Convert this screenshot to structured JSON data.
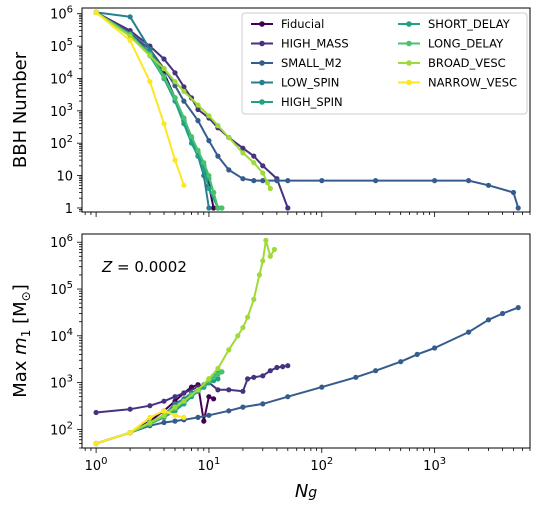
{
  "chart_data": [
    {
      "type": "line",
      "panel": "top",
      "xscale": "log",
      "yscale": "log",
      "xlim": [
        0.75,
        7000
      ],
      "ylim": [
        0.75,
        1500000
      ],
      "ylabel": "BBH Number",
      "yticks": [
        {
          "v": 1,
          "label": "1"
        },
        {
          "v": 10,
          "label": "10"
        },
        {
          "v": 100,
          "label": "10^2"
        },
        {
          "v": 1000,
          "label": "10^3"
        },
        {
          "v": 10000,
          "label": "10^4"
        },
        {
          "v": 100000,
          "label": "10^5"
        },
        {
          "v": 1000000,
          "label": "10^6"
        }
      ],
      "legend": {
        "position": "top-right",
        "columns": 2
      },
      "series": [
        {
          "name": "Fiducial",
          "color": "#440154",
          "x": [
            1,
            2,
            3,
            4,
            5,
            6,
            7,
            8,
            9,
            10,
            11
          ],
          "y": [
            1100000,
            250000,
            60000,
            15000,
            2500,
            500,
            150,
            50,
            20,
            5,
            1
          ]
        },
        {
          "name": "HIGH_MASS",
          "color": "#46327e",
          "x": [
            1,
            2,
            3,
            4,
            5,
            6,
            7,
            8,
            10,
            12,
            15,
            20,
            25,
            30,
            40,
            50
          ],
          "y": [
            1100000,
            300000,
            100000,
            40000,
            15000,
            5500,
            2500,
            1100,
            600,
            300,
            150,
            70,
            40,
            20,
            8,
            1
          ]
        },
        {
          "name": "SMALL_M2",
          "color": "#365c8d",
          "x": [
            1,
            2,
            3,
            4,
            5,
            6,
            8,
            10,
            12,
            15,
            20,
            25,
            30,
            40,
            50,
            100,
            300,
            1000,
            2000,
            3000,
            5000,
            5500
          ],
          "y": [
            1100000,
            250000,
            80000,
            20000,
            6000,
            2000,
            500,
            120,
            40,
            15,
            8,
            7,
            7,
            7,
            7,
            7,
            7,
            7,
            7,
            5,
            3,
            1
          ]
        },
        {
          "name": "LOW_SPIN",
          "color": "#277f8e",
          "x": [
            1,
            2,
            3,
            4,
            5,
            6,
            7,
            8,
            9,
            10
          ],
          "y": [
            1100000,
            800000,
            80000,
            12000,
            2500,
            500,
            150,
            40,
            10,
            1
          ]
        },
        {
          "name": "HIGH_SPIN",
          "color": "#1fa187",
          "x": [
            1,
            2,
            3,
            4,
            5,
            6,
            7,
            8,
            9,
            10,
            12
          ],
          "y": [
            1100000,
            220000,
            50000,
            10000,
            2000,
            400,
            100,
            40,
            15,
            4,
            1
          ]
        },
        {
          "name": "SHORT_DELAY",
          "color": "#1fa187",
          "x": [
            1,
            2,
            3,
            4,
            5,
            6,
            7,
            8,
            9,
            10,
            11,
            12,
            13
          ],
          "y": [
            1100000,
            220000,
            60000,
            12000,
            2500,
            600,
            150,
            50,
            20,
            8,
            3,
            1,
            1
          ]
        },
        {
          "name": "LONG_DELAY",
          "color": "#4ac16d",
          "x": [
            1,
            2,
            3,
            4,
            5,
            6,
            7,
            8,
            9,
            10,
            11,
            12,
            13
          ],
          "y": [
            1100000,
            230000,
            55000,
            11000,
            2500,
            600,
            160,
            60,
            25,
            10,
            3,
            1,
            1
          ]
        },
        {
          "name": "BROAD_VESC",
          "color": "#a0da39",
          "x": [
            1,
            2,
            3,
            4,
            5,
            6,
            8,
            10,
            12,
            15,
            20,
            25,
            30,
            33,
            35
          ],
          "y": [
            1100000,
            200000,
            50000,
            20000,
            8000,
            4000,
            1500,
            700,
            350,
            150,
            50,
            25,
            12,
            6,
            4
          ]
        },
        {
          "name": "NARROW_VESC",
          "color": "#fde725",
          "x": [
            1,
            2,
            3,
            4,
            5,
            6
          ],
          "y": [
            1100000,
            150000,
            8000,
            400,
            30,
            5
          ]
        }
      ]
    },
    {
      "type": "line",
      "panel": "bottom",
      "xscale": "log",
      "yscale": "log",
      "xlim": [
        0.75,
        7000
      ],
      "ylim": [
        40,
        1500000
      ],
      "xlabel": "Ng",
      "ylabel": "Max m1 [M_sun]",
      "annotation": "Z = 0.0002",
      "xticks": [
        {
          "v": 1,
          "label": "10^0"
        },
        {
          "v": 10,
          "label": "10^1"
        },
        {
          "v": 100,
          "label": "10^2"
        },
        {
          "v": 1000,
          "label": "10^3"
        }
      ],
      "yticks": [
        {
          "v": 100,
          "label": "10^2"
        },
        {
          "v": 1000,
          "label": "10^3"
        },
        {
          "v": 10000,
          "label": "10^4"
        },
        {
          "v": 100000,
          "label": "10^5"
        },
        {
          "v": 1000000,
          "label": "10^6"
        }
      ],
      "series": [
        {
          "name": "Fiducial",
          "color": "#440154",
          "x": [
            1,
            2,
            3,
            4,
            5,
            6,
            7,
            8,
            9,
            10,
            11
          ],
          "y": [
            50,
            85,
            150,
            250,
            400,
            600,
            800,
            900,
            150,
            500,
            450
          ]
        },
        {
          "name": "HIGH_MASS",
          "color": "#46327e",
          "x": [
            1,
            2,
            3,
            4,
            5,
            6,
            8,
            10,
            12,
            15,
            20,
            22,
            25,
            30,
            35,
            40,
            45,
            50
          ],
          "y": [
            230,
            270,
            320,
            400,
            500,
            600,
            800,
            1000,
            700,
            700,
            650,
            1200,
            1300,
            1400,
            1800,
            2100,
            2200,
            2300
          ]
        },
        {
          "name": "SMALL_M2",
          "color": "#365c8d",
          "x": [
            1,
            2,
            3,
            4,
            5,
            6,
            8,
            10,
            15,
            20,
            30,
            50,
            100,
            200,
            300,
            500,
            700,
            1000,
            2000,
            3000,
            4000,
            5500
          ],
          "y": [
            50,
            85,
            120,
            140,
            150,
            160,
            180,
            200,
            250,
            300,
            350,
            500,
            800,
            1300,
            1800,
            2800,
            4000,
            5500,
            12000,
            22000,
            30000,
            40000
          ]
        },
        {
          "name": "LOW_SPIN",
          "color": "#277f8e",
          "x": [
            1,
            2,
            3,
            4,
            5,
            6,
            7,
            8,
            9,
            10
          ],
          "y": [
            50,
            85,
            140,
            200,
            350,
            450,
            600,
            700,
            800,
            1000
          ]
        },
        {
          "name": "HIGH_SPIN",
          "color": "#1fa187",
          "x": [
            1,
            2,
            3,
            4,
            5,
            6,
            7,
            8,
            9,
            10,
            11,
            12
          ],
          "y": [
            50,
            85,
            140,
            200,
            300,
            400,
            550,
            650,
            800,
            1000,
            1100,
            1200
          ]
        },
        {
          "name": "SHORT_DELAY",
          "color": "#1fa187",
          "x": [
            1,
            2,
            3,
            4,
            5,
            6,
            7,
            8,
            9,
            10,
            11,
            12,
            13
          ],
          "y": [
            50,
            85,
            130,
            180,
            250,
            350,
            500,
            650,
            900,
            1200,
            1400,
            1600,
            1700
          ]
        },
        {
          "name": "LONG_DELAY",
          "color": "#4ac16d",
          "x": [
            1,
            2,
            3,
            4,
            5,
            6,
            7,
            8,
            9,
            10,
            11,
            12,
            13
          ],
          "y": [
            50,
            85,
            130,
            190,
            280,
            400,
            550,
            700,
            900,
            1100,
            1300,
            1500,
            1700
          ]
        },
        {
          "name": "BROAD_VESC",
          "color": "#a0da39",
          "x": [
            1,
            2,
            3,
            4,
            5,
            6,
            8,
            10,
            12,
            15,
            18,
            20,
            22,
            25,
            28,
            30,
            32,
            35,
            38
          ],
          "y": [
            50,
            85,
            140,
            200,
            300,
            400,
            700,
            1200,
            2000,
            5000,
            10000,
            15000,
            25000,
            60000,
            200000,
            400000,
            1100000,
            500000,
            700000
          ]
        },
        {
          "name": "NARROW_VESC",
          "color": "#fde725",
          "x": [
            1,
            2,
            3,
            4,
            5,
            6
          ],
          "y": [
            50,
            85,
            180,
            250,
            200,
            180
          ]
        }
      ]
    }
  ]
}
